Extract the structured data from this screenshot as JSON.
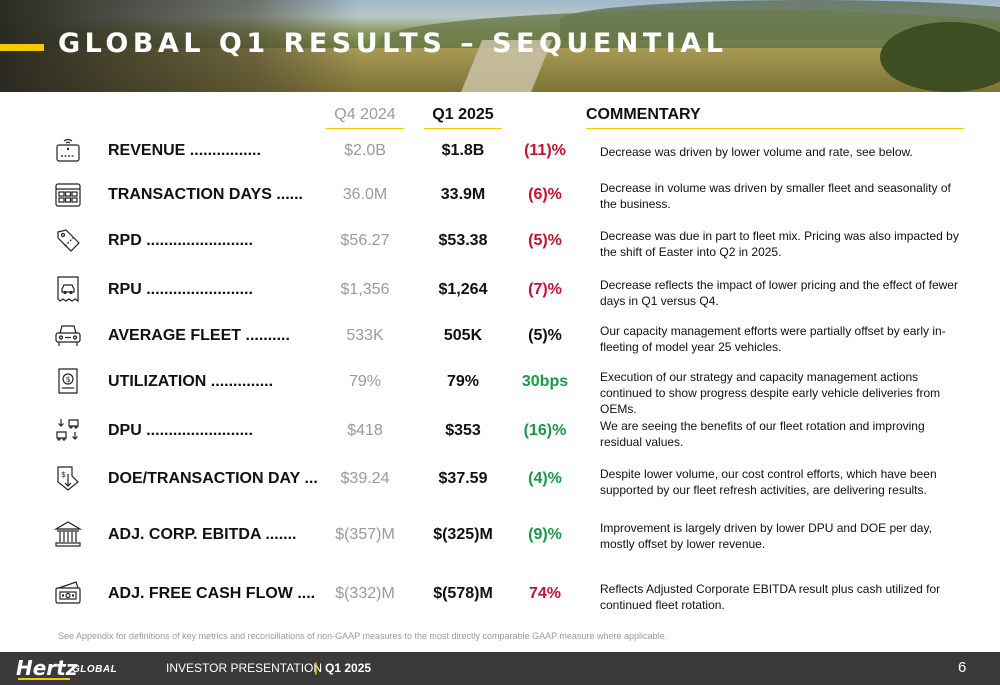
{
  "title": "GLOBAL Q1 RESULTS – SEQUENTIAL",
  "columns": {
    "prev": "Q4 2024",
    "cur": "Q1 2025",
    "commentary": "COMMENTARY"
  },
  "rows": [
    {
      "metric": "REVENUE ................",
      "prev": "$2.0B",
      "cur": "$1.8B",
      "change": "(11)%",
      "change_color": "#c8102e",
      "icon": "credit-card-terminal-icon",
      "commentary": "Decrease was driven by lower volume and rate, see below."
    },
    {
      "metric": "TRANSACTION DAYS ......",
      "prev": "36.0M",
      "cur": "33.9M",
      "change": "(6)%",
      "change_color": "#c8102e",
      "icon": "calendar-grid-icon",
      "commentary": "Decrease in volume was driven by smaller fleet and seasonality of the business."
    },
    {
      "metric": "RPD ........................",
      "prev": "$56.27",
      "cur": "$53.38",
      "change": "(5)%",
      "change_color": "#c8102e",
      "icon": "price-tag-icon",
      "commentary": "Decrease was due in part to fleet mix. Pricing was also impacted by the shift of Easter into Q2 in 2025."
    },
    {
      "metric": "RPU ........................",
      "prev": "$1,356",
      "cur": "$1,264",
      "change": "(7)%",
      "change_color": "#c8102e",
      "icon": "car-receipt-icon",
      "commentary": "Decrease reflects the impact of lower pricing and the effect of fewer days in Q1 versus Q4."
    },
    {
      "metric": "AVERAGE FLEET ..........",
      "prev": "533K",
      "cur": "505K",
      "change": "(5)%",
      "change_color": "#111111",
      "icon": "car-front-icon",
      "commentary": "Our capacity management efforts were partially offset by early in-fleeting of model year 25 vehicles."
    },
    {
      "metric": "UTILIZATION ..............",
      "prev": "79%",
      "cur": "79%",
      "change": "30bps",
      "change_color": "#1a9a44",
      "icon": "dollar-document-icon",
      "commentary": "Execution of our strategy and capacity management actions continued to show progress despite early vehicle deliveries from OEMs."
    },
    {
      "metric": "DPU ........................",
      "prev": "$418",
      "cur": "$353",
      "change": "(16)%",
      "change_color": "#1a9a44",
      "icon": "car-depreciation-icon",
      "commentary": "We are seeing the benefits of our fleet rotation and improving residual values."
    },
    {
      "metric": "DOE/TRANSACTION DAY ...",
      "prev": "$39.24",
      "cur": "$37.59",
      "change": "(4)%",
      "change_color": "#1a9a44",
      "icon": "cost-down-icon",
      "commentary": "Despite lower volume, our cost control efforts, which have been supported by our fleet refresh activities, are delivering results."
    },
    {
      "metric": "ADJ. CORP. EBITDA .......",
      "prev": "$(357)M",
      "cur": "$(325)M",
      "change": "(9)%",
      "change_color": "#1a9a44",
      "icon": "bank-building-icon",
      "commentary": "Improvement is largely driven by lower DPU and DOE per day, mostly offset by lower revenue."
    },
    {
      "metric": "ADJ. FREE CASH FLOW ....",
      "prev": "$(332)M",
      "cur": "$(578)M",
      "change": "74%",
      "change_color": "#c8102e",
      "icon": "cash-wallet-icon",
      "commentary": "Reflects Adjusted Corporate EBITDA result plus cash utilized for continued fleet rotation."
    }
  ],
  "footnote": "See Appendix for definitions of key metrics and reconciliations of non-GAAP measures to the most directly comparable GAAP measure where applicable.",
  "footer": {
    "logo": "Hertz",
    "logo_sub": "GLOBAL",
    "presentation": "INVESTOR PRESENTATION",
    "separator": "|",
    "quarter": "Q1 2025",
    "page": "6"
  }
}
